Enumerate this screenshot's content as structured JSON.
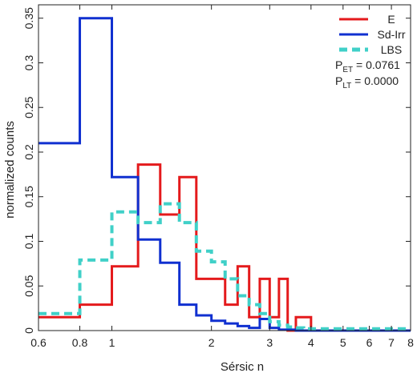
{
  "chart_data": {
    "type": "line",
    "step": true,
    "xlabel": "Sérsic n",
    "ylabel": "normalized counts",
    "xscale": "log",
    "xlim": [
      0.6,
      8
    ],
    "ylim": [
      0,
      0.365
    ],
    "x_ticks": [
      0.6,
      0.8,
      1,
      2,
      3,
      4,
      5,
      6,
      7,
      8
    ],
    "x_tick_labels": [
      "0.6",
      "0.8",
      "1",
      "2",
      "3",
      "4",
      "5",
      "6",
      "7",
      "8"
    ],
    "y_ticks": [
      0,
      0.05,
      0.1,
      0.15,
      0.2,
      0.25,
      0.3,
      0.35
    ],
    "y_tick_labels": [
      "0",
      "0.05",
      "0.1",
      "0.15",
      "0.2",
      "0.25",
      "0.3",
      "0.35"
    ],
    "legend_position": "top-right",
    "series": [
      {
        "name": "E",
        "color": "#e41a1c",
        "dash": "solid",
        "bin_edges": [
          0.6,
          0.8,
          1.0,
          1.2,
          1.4,
          1.6,
          1.8,
          2.0,
          2.2,
          2.4,
          2.6,
          2.8,
          3.0,
          3.2,
          3.4,
          3.6,
          3.8,
          4.0,
          4.2,
          4.4,
          4.6,
          4.8,
          5.0,
          5.2,
          5.4,
          5.6,
          5.8,
          6.0,
          6.2,
          6.4,
          6.6,
          6.8,
          7.0,
          7.2,
          7.4,
          7.6,
          7.8,
          8.0
        ],
        "values": [
          0.015,
          0.029,
          0.072,
          0.186,
          0.13,
          0.172,
          0.058,
          0.058,
          0.029,
          0.072,
          0.015,
          0.058,
          0.015,
          0.058,
          0,
          0.015,
          0.015,
          0,
          0,
          0,
          0,
          0,
          0,
          0,
          0,
          0,
          0,
          0,
          0,
          0,
          0,
          0,
          0,
          0,
          0,
          0,
          0
        ]
      },
      {
        "name": "Sd-Irr",
        "color": "#1030d0",
        "dash": "solid",
        "bin_edges": [
          0.6,
          0.8,
          1.0,
          1.2,
          1.4,
          1.6,
          1.8,
          2.0,
          2.2,
          2.4,
          2.6,
          2.8,
          3.0,
          3.2,
          3.4,
          3.6,
          3.8,
          4.0,
          4.2,
          4.4,
          4.6,
          4.8,
          5.0,
          5.2,
          5.4,
          5.6,
          5.8,
          6.0,
          6.2,
          6.4,
          6.6,
          6.8,
          7.0,
          7.2,
          7.4,
          7.6,
          7.8,
          8.0
        ],
        "values": [
          0.21,
          0.35,
          0.172,
          0.102,
          0.076,
          0.029,
          0.017,
          0.011,
          0.008,
          0.005,
          0.003,
          0.013,
          0.003,
          0.001,
          0.001,
          0,
          0,
          0,
          0,
          0,
          0,
          0,
          0,
          0,
          0,
          0,
          0,
          0,
          0,
          0,
          0,
          0,
          0,
          0,
          0,
          0,
          0
        ]
      },
      {
        "name": "LBS",
        "color": "#40d0c8",
        "dash": "dashed",
        "bin_edges": [
          0.6,
          0.8,
          1.0,
          1.2,
          1.4,
          1.6,
          1.8,
          2.0,
          2.2,
          2.4,
          2.6,
          2.8,
          3.0,
          3.2,
          3.4,
          3.6,
          3.8,
          4.0,
          4.2,
          4.4,
          4.6,
          4.8,
          5.0,
          5.2,
          5.4,
          5.6,
          5.8,
          6.0,
          6.2,
          6.4,
          6.6,
          6.8,
          7.0,
          7.2,
          7.4,
          7.6,
          7.8,
          8.0
        ],
        "values": [
          0.019,
          0.079,
          0.133,
          0.121,
          0.142,
          0.121,
          0.089,
          0.077,
          0.058,
          0.039,
          0.029,
          0.019,
          0.01,
          0.006,
          0.004,
          0.003,
          0.002,
          0.002,
          0.002,
          0.002,
          0.002,
          0.002,
          0.002,
          0.002,
          0.002,
          0.002,
          0.002,
          0.002,
          0.002,
          0.002,
          0.002,
          0.002,
          0.002,
          0.002,
          0.002,
          0.002,
          0.002
        ]
      }
    ],
    "annotations": [
      {
        "main": "P",
        "sub": "ET",
        "rest": " = 0.0761"
      },
      {
        "main": "P",
        "sub": "LT",
        "rest": " = 0.0000"
      }
    ]
  }
}
